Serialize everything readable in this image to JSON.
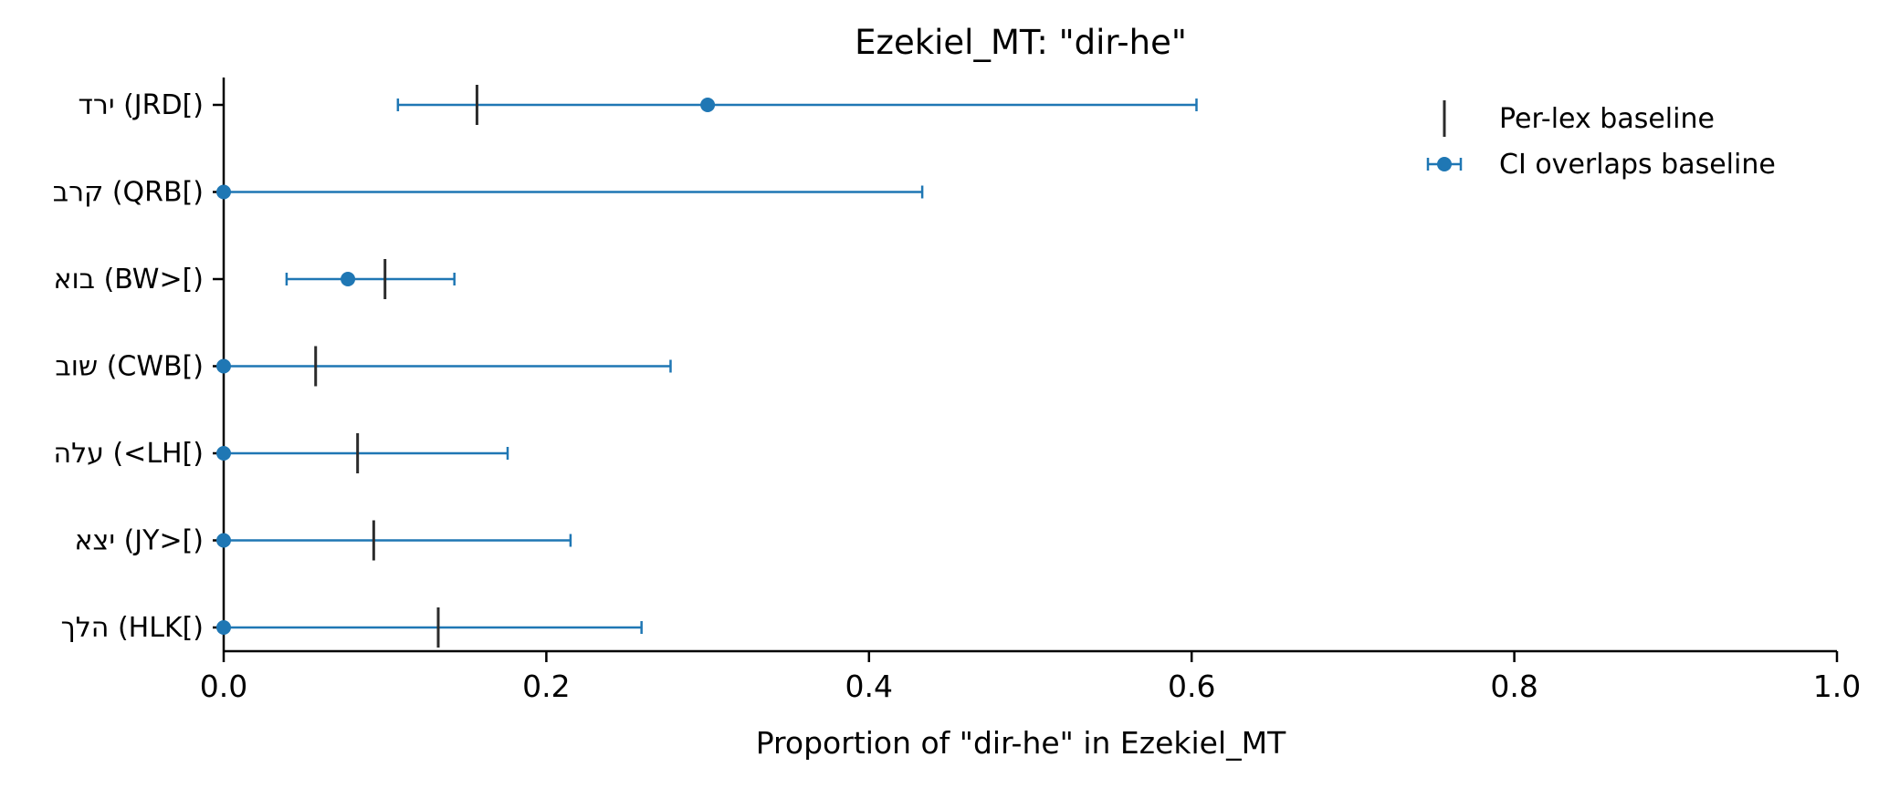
{
  "chart_data": {
    "type": "errorbar",
    "title": "Ezekiel_MT: \"dir-he\"",
    "xlabel": "Proportion of \"dir-he\" in Ezekiel_MT",
    "ylabel": "",
    "xlim": [
      0.0,
      1.0
    ],
    "xticks": [
      "0.0",
      "0.2",
      "0.4",
      "0.6",
      "0.8",
      "1.0"
    ],
    "grid": false,
    "legend_position": "top-right",
    "colors": {
      "series": "#1f77b4",
      "baseline": "#2b2b2b",
      "axis": "#000000"
    },
    "legend": [
      {
        "label": "Per-lex baseline",
        "marker": "vertical-line"
      },
      {
        "label": "CI overlaps baseline",
        "marker": "point-with-errorbar"
      }
    ],
    "categories": [
      "ירד (JRD[)",
      "קרב (QRB[)",
      "בוא (BW>[)",
      "שוב (CWB[)",
      "עלה (<LH[)",
      "יצא (JY>[)",
      "הלך (HLK[)"
    ],
    "series": [
      {
        "name": "CI overlaps baseline",
        "points": [
          {
            "category": "ירד (JRD[)",
            "value": 0.3,
            "ci_low": 0.108,
            "ci_high": 0.603,
            "baseline": 0.157
          },
          {
            "category": "קרב (QRB[)",
            "value": 0.0,
            "ci_low": 0.0,
            "ci_high": 0.433,
            "baseline": null
          },
          {
            "category": "בוא (BW>[)",
            "value": 0.077,
            "ci_low": 0.039,
            "ci_high": 0.143,
            "baseline": 0.1
          },
          {
            "category": "שוב (CWB[)",
            "value": 0.0,
            "ci_low": 0.0,
            "ci_high": 0.277,
            "baseline": 0.057
          },
          {
            "category": "עלה (<LH[)",
            "value": 0.0,
            "ci_low": 0.0,
            "ci_high": 0.176,
            "baseline": 0.083
          },
          {
            "category": "יצא (JY>[)",
            "value": 0.0,
            "ci_low": 0.0,
            "ci_high": 0.215,
            "baseline": 0.093
          },
          {
            "category": "הלך (HLK[)",
            "value": 0.0,
            "ci_low": 0.0,
            "ci_high": 0.259,
            "baseline": 0.133
          }
        ]
      }
    ]
  }
}
